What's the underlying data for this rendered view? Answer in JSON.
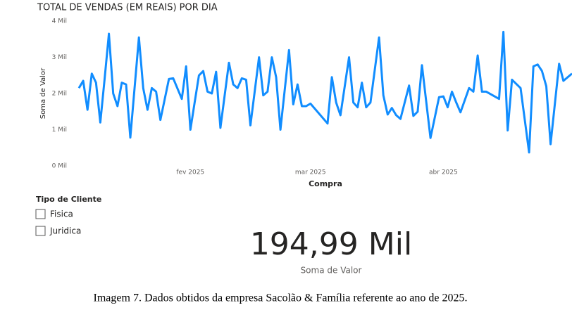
{
  "chart_data": {
    "type": "line",
    "title": "TOTAL DE VENDAS (EM REAIS) POR DIA",
    "x_label": "Compra",
    "y_label": "Soma de Valor",
    "x": [
      0,
      1,
      2,
      3,
      4,
      5,
      6,
      7,
      8,
      9,
      10,
      11,
      12,
      14,
      15,
      16,
      17,
      18,
      19,
      21,
      22,
      24,
      25,
      26,
      27,
      28,
      29,
      30,
      31,
      32,
      33,
      35,
      36,
      37,
      38,
      39,
      40,
      42,
      43,
      44,
      45,
      46,
      47,
      49,
      50,
      51,
      52,
      53,
      54,
      58,
      59,
      60,
      61,
      63,
      64,
      65,
      66,
      67,
      68,
      70,
      71,
      72,
      73,
      74,
      75,
      77,
      78,
      79,
      80,
      82,
      84,
      85,
      86,
      87,
      88,
      89,
      91,
      92,
      93,
      94,
      95,
      98,
      99,
      100,
      101,
      103,
      105,
      106,
      107,
      108,
      109,
      110,
      112,
      113,
      115
    ],
    "values": [
      2.15,
      2.35,
      1.55,
      2.55,
      2.3,
      1.2,
      2.4,
      3.65,
      2.0,
      1.65,
      2.3,
      2.25,
      0.78,
      3.55,
      2.15,
      1.55,
      2.15,
      2.05,
      1.27,
      2.4,
      2.42,
      1.85,
      2.75,
      1.0,
      1.75,
      2.5,
      2.62,
      2.05,
      2.0,
      2.6,
      1.05,
      2.85,
      2.25,
      2.15,
      2.42,
      2.38,
      1.12,
      3.0,
      1.95,
      2.05,
      3.0,
      2.45,
      1.0,
      3.2,
      1.7,
      2.25,
      1.65,
      1.65,
      1.72,
      1.17,
      2.45,
      1.75,
      1.4,
      3.0,
      1.75,
      1.62,
      2.3,
      1.62,
      1.75,
      3.55,
      1.95,
      1.42,
      1.6,
      1.4,
      1.3,
      2.22,
      1.38,
      1.5,
      2.78,
      0.77,
      1.9,
      1.92,
      1.62,
      2.05,
      1.75,
      1.48,
      2.15,
      2.05,
      3.05,
      2.05,
      2.05,
      1.85,
      3.7,
      0.98,
      2.38,
      2.15,
      0.37,
      2.75,
      2.8,
      2.62,
      2.2,
      0.6,
      2.82,
      2.35,
      2.55
    ],
    "color": "#118DFF",
    "xlim": [
      0,
      115
    ],
    "xticks": [
      {
        "value": 26,
        "label": "fev 2025"
      },
      {
        "value": 54,
        "label": "mar 2025"
      },
      {
        "value": 85,
        "label": "abr 2025"
      }
    ],
    "ylim": [
      0,
      4
    ],
    "yticks": [
      {
        "value": 0,
        "label": "0 Mil"
      },
      {
        "value": 1,
        "label": "1 Mil"
      },
      {
        "value": 2,
        "label": "2 Mil"
      },
      {
        "value": 3,
        "label": "3 Mil"
      },
      {
        "value": 4,
        "label": "4 Mil"
      }
    ]
  },
  "slicer": {
    "title": "Tipo de Cliente",
    "items": [
      "Fisica",
      "Juridica"
    ]
  },
  "card": {
    "value": "194,99 Mil",
    "label": "Soma de Valor"
  },
  "caption": "Imagem 7. Dados obtidos da empresa Sacolão & Família referente ao ano de 2025."
}
